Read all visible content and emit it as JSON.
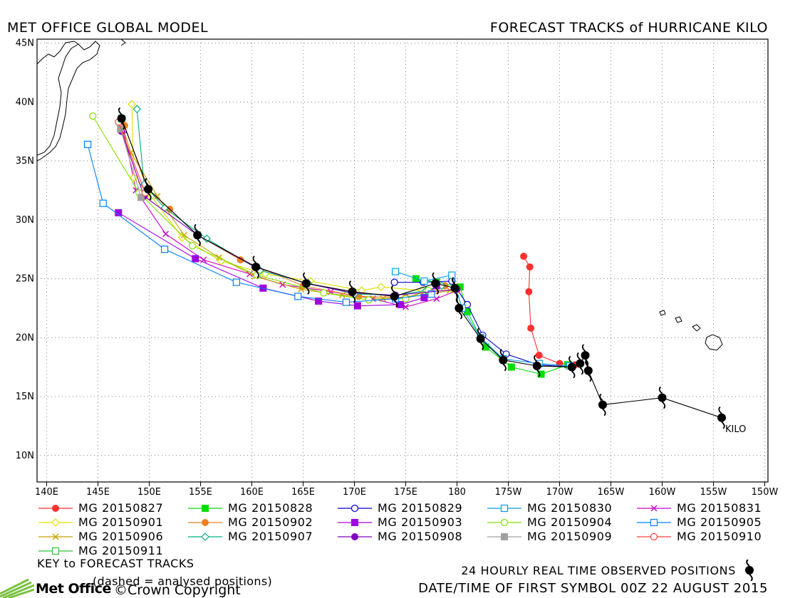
{
  "header": {
    "left": "MET OFFICE GLOBAL MODEL",
    "right": "FORECAST TRACKS of HURRICANE KILO"
  },
  "map": {
    "lon_labels": [
      "140E",
      "145E",
      "150E",
      "155E",
      "160E",
      "165E",
      "170E",
      "175E",
      "180",
      "175W",
      "170W",
      "165W",
      "160W",
      "155W",
      "150W"
    ],
    "lat_labels": [
      "45N",
      "40N",
      "35N",
      "30N",
      "25N",
      "20N",
      "15N",
      "10N"
    ],
    "storm_label": "KILO"
  },
  "chart_data": {
    "type": "track-map",
    "lon_range": [
      140,
      210
    ],
    "lat_range": [
      8,
      45
    ],
    "observed_track": [
      [
        205.8,
        13.2
      ],
      [
        200,
        14.9
      ],
      [
        194.2,
        14.3
      ],
      [
        192.8,
        17.2
      ],
      [
        192.5,
        18.5
      ],
      [
        192,
        17.8
      ],
      [
        191.2,
        17.5
      ],
      [
        187.8,
        17.6
      ],
      [
        184.5,
        18.1
      ],
      [
        182.3,
        19.9
      ],
      [
        180.2,
        22.5
      ],
      [
        179.8,
        24.2
      ],
      [
        177.9,
        24.6
      ],
      [
        173.9,
        23.5
      ],
      [
        169.8,
        23.9
      ],
      [
        165.3,
        24.6
      ],
      [
        160.4,
        26
      ],
      [
        154.7,
        28.7
      ],
      [
        149.9,
        32.6
      ],
      [
        147.3,
        38.6
      ]
    ],
    "forecast_tracks": [
      {
        "name": "MG 20150827",
        "color": "#ff3030",
        "marker": "circle-filled",
        "points": [
          [
            191.5,
            17.7
          ],
          [
            190,
            17.8
          ],
          [
            188,
            18.5
          ],
          [
            187.2,
            20.8
          ],
          [
            187,
            23.9
          ],
          [
            187.1,
            26
          ],
          [
            186.5,
            26.9
          ]
        ]
      },
      {
        "name": "MG 20150828",
        "color": "#00e000",
        "marker": "square-filled",
        "points": [
          [
            190.8,
            17.7
          ],
          [
            188.2,
            16.9
          ],
          [
            185.3,
            17.5
          ],
          [
            182.8,
            19.2
          ],
          [
            181,
            22.2
          ],
          [
            180.3,
            24.3
          ],
          [
            178,
            24.7
          ],
          [
            176,
            25
          ]
        ]
      },
      {
        "name": "MG 20150829",
        "color": "#0000cc",
        "marker": "circle-open",
        "points": [
          [
            191.2,
            17.5
          ],
          [
            187.9,
            17.7
          ],
          [
            184.8,
            18.6
          ],
          [
            182.5,
            20.2
          ],
          [
            181,
            22.8
          ],
          [
            179.5,
            24.8
          ],
          [
            176.7,
            24.7
          ],
          [
            173.9,
            24.7
          ]
        ]
      },
      {
        "name": "MG 20150830",
        "color": "#00a0e0",
        "marker": "square-open",
        "points": [
          [
            191,
            17.6
          ],
          [
            188,
            17.8
          ],
          [
            184.5,
            18.2
          ],
          [
            182.3,
            20
          ],
          [
            180.5,
            22.5
          ],
          [
            179.5,
            25.3
          ],
          [
            176.8,
            24.8
          ],
          [
            174,
            25.6
          ]
        ]
      },
      {
        "name": "MG 20150831",
        "color": "#cc00cc",
        "marker": "x",
        "points": [
          [
            180,
            24
          ],
          [
            178,
            23.3
          ],
          [
            175,
            22.6
          ],
          [
            171.8,
            23.3
          ],
          [
            167.7,
            23.9
          ],
          [
            163,
            24.5
          ],
          [
            159.8,
            25.4
          ],
          [
            155.3,
            26.6
          ],
          [
            151.6,
            28.8
          ],
          [
            148.7,
            32.5
          ],
          [
            147.5,
            37.6
          ]
        ]
      },
      {
        "name": "MG 20150901",
        "color": "#e0e000",
        "marker": "diamond-open",
        "points": [
          [
            180,
            24
          ],
          [
            176.6,
            24
          ],
          [
            172.6,
            24.3
          ],
          [
            170.7,
            24
          ],
          [
            165.7,
            24.8
          ],
          [
            161.3,
            25.4
          ],
          [
            157,
            26.5
          ],
          [
            153.2,
            28.5
          ],
          [
            150.2,
            32
          ],
          [
            148.5,
            33.6
          ],
          [
            148.3,
            39.8
          ]
        ]
      },
      {
        "name": "MG 20150906",
        "color": "#c8a000",
        "marker": "x",
        "points": [
          [
            179.3,
            24
          ],
          [
            176.8,
            23.6
          ],
          [
            172.8,
            23.3
          ],
          [
            168.8,
            23.6
          ],
          [
            164.8,
            24.1
          ],
          [
            160.3,
            25.2
          ],
          [
            156.8,
            26.8
          ],
          [
            153.4,
            28.7
          ],
          [
            150.8,
            32
          ],
          [
            148.2,
            35.7
          ],
          [
            147.3,
            38.2
          ]
        ]
      },
      {
        "name": "MG 20150902",
        "color": "#f08020",
        "marker": "circle-filled",
        "points": [
          [
            178.8,
            24.4
          ],
          [
            175,
            23.4
          ],
          [
            170.4,
            23.5
          ],
          [
            165,
            24.4
          ],
          [
            158.9,
            26.6
          ],
          [
            154.7,
            28.7
          ],
          [
            152,
            30.9
          ],
          [
            149.8,
            32.6
          ],
          [
            147.6,
            38
          ]
        ]
      },
      {
        "name": "MG 20150907",
        "color": "#00b080",
        "marker": "diamond-open",
        "points": [
          [
            178.5,
            24.4
          ],
          [
            177,
            24
          ],
          [
            174,
            23.6
          ],
          [
            170,
            23.7
          ],
          [
            165.5,
            24.6
          ],
          [
            160.8,
            25.7
          ],
          [
            155.6,
            28.4
          ],
          [
            151.5,
            31
          ],
          [
            149.5,
            33
          ],
          [
            148.8,
            39.4
          ]
        ]
      },
      {
        "name": "MG 20150903",
        "color": "#a000e0",
        "marker": "square-filled",
        "points": [
          [
            178,
            24.4
          ],
          [
            176.8,
            23.4
          ],
          [
            174.5,
            22.8
          ],
          [
            170.3,
            22.7
          ],
          [
            166.5,
            23.1
          ],
          [
            161.1,
            24.2
          ],
          [
            154.5,
            26.7
          ],
          [
            147,
            30.6
          ]
        ]
      },
      {
        "name": "MG 20150904",
        "color": "#80e000",
        "marker": "circle-open",
        "points": [
          [
            177.2,
            24
          ],
          [
            175,
            23.3
          ],
          [
            171.4,
            23.2
          ],
          [
            167,
            23.8
          ],
          [
            160.5,
            25.3
          ],
          [
            154.2,
            27.8
          ],
          [
            149,
            32.3
          ],
          [
            144.5,
            38.8
          ]
        ]
      },
      {
        "name": "MG 20150905",
        "color": "#0080ff",
        "marker": "square-open",
        "points": [
          [
            177.5,
            23.7
          ],
          [
            174,
            23.3
          ],
          [
            169.2,
            23
          ],
          [
            164.5,
            23.5
          ],
          [
            158.5,
            24.7
          ],
          [
            151.5,
            27.5
          ],
          [
            145.5,
            31.4
          ],
          [
            144,
            36.4
          ]
        ]
      },
      {
        "name": "MG 20150908",
        "color": "#8000c0",
        "marker": "circle-filled",
        "points": [
          [
            180,
            24.1
          ],
          [
            174,
            23.6
          ],
          [
            169.8,
            23.8
          ],
          [
            165.3,
            24.6
          ],
          [
            160.3,
            26
          ],
          [
            154.7,
            28.7
          ],
          [
            149.5,
            32
          ],
          [
            147.3,
            37.5
          ]
        ]
      },
      {
        "name": "MG 20150909",
        "color": "#a0a0a0",
        "marker": "square-filled",
        "points": [
          [
            149.2,
            31.9
          ],
          [
            147.2,
            37.7
          ]
        ]
      },
      {
        "name": "MG 20150910",
        "color": "#ff4040",
        "marker": "circle-open",
        "points": [
          [
            149.6,
            32.3
          ],
          [
            147,
            38.3
          ]
        ]
      },
      {
        "name": "MG 20150911",
        "color": "#30c030",
        "marker": "square-open",
        "points": [
          [
            147.3,
            38.6
          ]
        ]
      }
    ]
  },
  "legend": {
    "items": [
      {
        "label": "MG 20150827",
        "color": "#ff3030",
        "marker": "circle-filled"
      },
      {
        "label": "MG 20150828",
        "color": "#00e000",
        "marker": "square-filled"
      },
      {
        "label": "MG 20150829",
        "color": "#0000cc",
        "marker": "circle-open"
      },
      {
        "label": "MG 20150830",
        "color": "#00a0e0",
        "marker": "square-open"
      },
      {
        "label": "MG 20150831",
        "color": "#cc00cc",
        "marker": "x"
      },
      {
        "label": "MG 20150901",
        "color": "#e0e000",
        "marker": "diamond-open"
      },
      {
        "label": "MG 20150902",
        "color": "#f08020",
        "marker": "circle-filled"
      },
      {
        "label": "MG 20150903",
        "color": "#a000e0",
        "marker": "square-filled"
      },
      {
        "label": "MG 20150904",
        "color": "#80e000",
        "marker": "circle-open"
      },
      {
        "label": "MG 20150905",
        "color": "#0080ff",
        "marker": "square-open"
      },
      {
        "label": "MG 20150906",
        "color": "#c8a000",
        "marker": "x"
      },
      {
        "label": "MG 20150907",
        "color": "#00b080",
        "marker": "diamond-open"
      },
      {
        "label": "MG 20150908",
        "color": "#8000c0",
        "marker": "circle-filled"
      },
      {
        "label": "MG 20150909",
        "color": "#a0a0a0",
        "marker": "square-filled"
      },
      {
        "label": "MG 20150910",
        "color": "#ff4040",
        "marker": "circle-open"
      },
      {
        "label": "MG 20150911",
        "color": "#30c030",
        "marker": "square-open"
      }
    ],
    "key_title": "KEY to FORECAST TRACKS",
    "analysed_note": "(dashed = analysed positions)"
  },
  "footer": {
    "observed_label": "24 HOURLY REAL TIME OBSERVED POSITIONS",
    "datetime": "DATE/TIME OF FIRST SYMBOL 00Z 22 AUGUST 2015",
    "logo_text": "Met Office",
    "copyright": "©Crown Copyright"
  }
}
